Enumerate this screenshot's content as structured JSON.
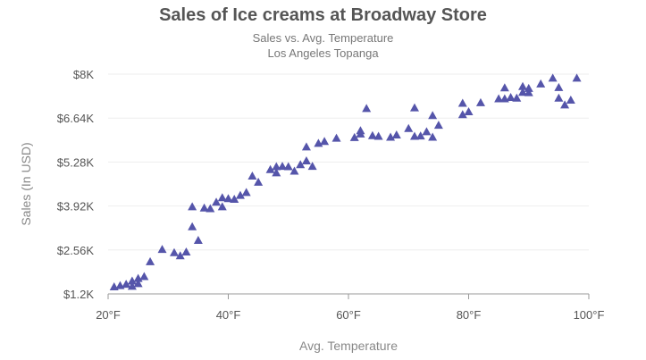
{
  "chart_data": {
    "type": "scatter",
    "title": "Sales of Ice creams at Broadway Store",
    "subtitle": "Sales vs. Avg. Temperature",
    "subtitle2": "Los Angeles Topanga",
    "xlabel": "Avg. Temperature",
    "ylabel": "Sales (In USD)",
    "xlim": [
      20,
      100
    ],
    "ylim": [
      1200,
      8000
    ],
    "x_ticks": [
      20,
      40,
      60,
      80,
      100
    ],
    "x_tick_labels": [
      "20°F",
      "40°F",
      "60°F",
      "80°F",
      "100°F"
    ],
    "y_ticks": [
      1200,
      2560,
      3920,
      5280,
      6640,
      8000
    ],
    "y_tick_labels": [
      "$1.2K",
      "$2.56K",
      "$3.92K",
      "$5.28K",
      "$6.64K",
      "$8K"
    ],
    "marker": "triangle",
    "color": "#5555aa",
    "grid_color": "#eeeeee",
    "series": [
      {
        "name": "Sales",
        "points": [
          [
            21,
            1420
          ],
          [
            22,
            1460
          ],
          [
            23,
            1500
          ],
          [
            24,
            1440
          ],
          [
            24,
            1600
          ],
          [
            25,
            1520
          ],
          [
            25,
            1680
          ],
          [
            26,
            1740
          ],
          [
            27,
            2200
          ],
          [
            29,
            2580
          ],
          [
            31,
            2480
          ],
          [
            32,
            2380
          ],
          [
            33,
            2500
          ],
          [
            34,
            3900
          ],
          [
            34,
            3280
          ],
          [
            35,
            2860
          ],
          [
            36,
            3860
          ],
          [
            37,
            3840
          ],
          [
            38,
            4040
          ],
          [
            39,
            4180
          ],
          [
            39,
            3900
          ],
          [
            40,
            4150
          ],
          [
            41,
            4130
          ],
          [
            42,
            4250
          ],
          [
            43,
            4340
          ],
          [
            44,
            4850
          ],
          [
            45,
            4660
          ],
          [
            47,
            5050
          ],
          [
            48,
            5140
          ],
          [
            48,
            4950
          ],
          [
            49,
            5150
          ],
          [
            50,
            5140
          ],
          [
            51,
            5000
          ],
          [
            52,
            5200
          ],
          [
            53,
            5750
          ],
          [
            53,
            5320
          ],
          [
            54,
            5150
          ],
          [
            55,
            5860
          ],
          [
            56,
            5920
          ],
          [
            58,
            6020
          ],
          [
            61,
            6040
          ],
          [
            62,
            6150
          ],
          [
            62,
            6250
          ],
          [
            63,
            6940
          ],
          [
            64,
            6100
          ],
          [
            65,
            6080
          ],
          [
            67,
            6050
          ],
          [
            68,
            6120
          ],
          [
            70,
            6320
          ],
          [
            71,
            6960
          ],
          [
            71,
            6080
          ],
          [
            72,
            6090
          ],
          [
            73,
            6220
          ],
          [
            74,
            6720
          ],
          [
            74,
            6050
          ],
          [
            75,
            6420
          ],
          [
            79,
            7100
          ],
          [
            79,
            6750
          ],
          [
            80,
            6840
          ],
          [
            82,
            7120
          ],
          [
            85,
            7240
          ],
          [
            86,
            7240
          ],
          [
            86,
            7580
          ],
          [
            87,
            7280
          ],
          [
            88,
            7260
          ],
          [
            89,
            7440
          ],
          [
            89,
            7620
          ],
          [
            90,
            7430
          ],
          [
            90,
            7560
          ],
          [
            92,
            7700
          ],
          [
            94,
            7880
          ],
          [
            95,
            7590
          ],
          [
            95,
            7260
          ],
          [
            96,
            7050
          ],
          [
            97,
            7200
          ],
          [
            98,
            7880
          ]
        ]
      }
    ]
  }
}
